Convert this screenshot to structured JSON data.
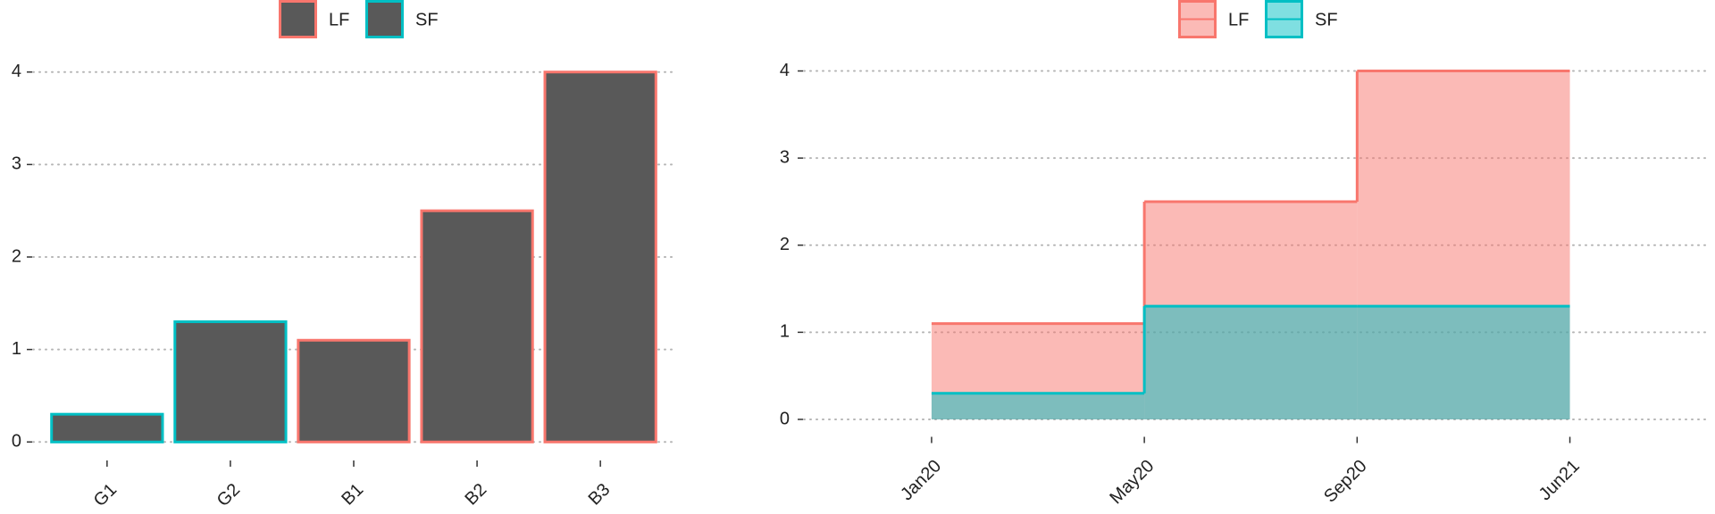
{
  "chart_data": [
    {
      "type": "bar",
      "categories": [
        "G1",
        "G2",
        "B1",
        "B2",
        "B3"
      ],
      "series": [
        {
          "name": "LF",
          "color": "#f8766d",
          "values": [
            null,
            null,
            1.1,
            2.5,
            4
          ]
        },
        {
          "name": "SF",
          "color": "#00bfc4",
          "values": [
            0.3,
            1.3,
            null,
            null,
            null
          ]
        }
      ],
      "fill": "#595959",
      "ylim": [
        -0.2,
        4.2
      ],
      "yticks": [
        0,
        1,
        2,
        3,
        4
      ],
      "grid": true,
      "legend": "top"
    },
    {
      "type": "step-area",
      "categories": [
        "Jan20",
        "May20",
        "Sep20",
        "Jun21"
      ],
      "series": [
        {
          "name": "LF",
          "color": "#f8766d",
          "values": [
            1.1,
            2.5,
            4,
            4
          ]
        },
        {
          "name": "SF",
          "color": "#00bfc4",
          "values": [
            0.3,
            1.3,
            1.3,
            null
          ]
        }
      ],
      "opacity": 0.5,
      "ylim": [
        -0.2,
        4.2
      ],
      "yticks": [
        0,
        1,
        2,
        3,
        4
      ],
      "grid": true,
      "legend": "top"
    }
  ]
}
